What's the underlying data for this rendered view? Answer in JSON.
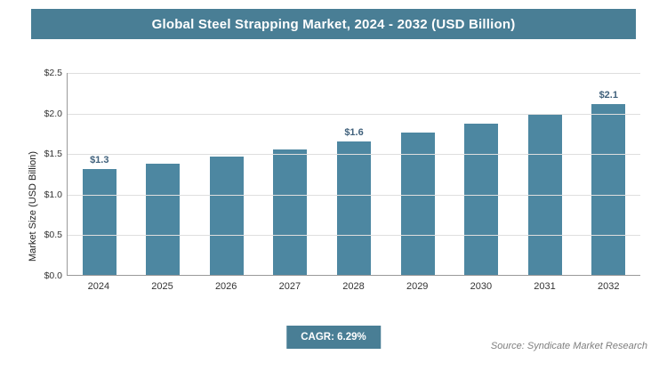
{
  "title": "Global Steel Strapping Market, 2024 - 2032 (USD Billion)",
  "chart_data": {
    "type": "bar",
    "title": "Global Steel Strapping Market, 2024 - 2032 (USD Billion)",
    "categories": [
      "2024",
      "2025",
      "2026",
      "2027",
      "2028",
      "2029",
      "2030",
      "2031",
      "2032"
    ],
    "values": [
      1.3,
      1.37,
      1.46,
      1.55,
      1.65,
      1.75,
      1.86,
      1.98,
      2.1
    ],
    "bar_labels": [
      "$1.3",
      "",
      "",
      "",
      "$1.6",
      "",
      "",
      "",
      "$2.1"
    ],
    "xlabel": "",
    "ylabel": "Market Size (USD Billion)",
    "ylim": [
      0,
      2.5
    ],
    "ytick_step": 0.5,
    "ytick_labels": [
      "$0.0",
      "$0.5",
      "$1.0",
      "$1.5",
      "$2.0",
      "$2.5"
    ],
    "grid": "horizontal",
    "legend": "none"
  },
  "footer": {
    "cagr_label": "CAGR: 6.29%",
    "source": "Source: Syndicate Market Research"
  },
  "colors": {
    "header_bg": "#497e95",
    "bar_fill": "#4d87a1",
    "badge_bg": "#497e95",
    "value_label": "#40617c"
  }
}
